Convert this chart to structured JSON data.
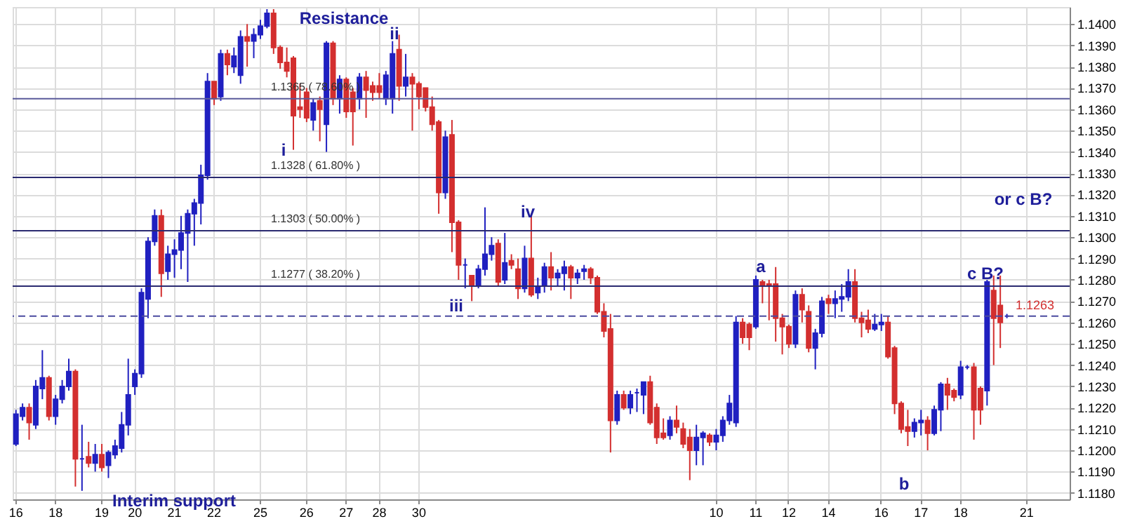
{
  "chart_data": {
    "type": "candlestick",
    "categories": [
      "16",
      null,
      null,
      null,
      null,
      null,
      "18",
      null,
      null,
      null,
      null,
      null,
      null,
      "19",
      null,
      null,
      null,
      null,
      "20",
      null,
      null,
      null,
      null,
      null,
      "21",
      null,
      null,
      null,
      null,
      null,
      "22",
      null,
      null,
      null,
      null,
      null,
      null,
      "25",
      null,
      null,
      null,
      null,
      null,
      null,
      "26",
      null,
      null,
      null,
      null,
      null,
      "27",
      null,
      null,
      null,
      null,
      "28",
      null,
      null,
      null,
      null,
      null,
      "30",
      null,
      null,
      null,
      null,
      null,
      null,
      null,
      null,
      null,
      null,
      null,
      null,
      null,
      null,
      null,
      null,
      null,
      null,
      null,
      null,
      null,
      null,
      null,
      null,
      null,
      null,
      null,
      null,
      null,
      null,
      null,
      null,
      null,
      null,
      null,
      null,
      null,
      null,
      null,
      null,
      null,
      null,
      null,
      null,
      "10",
      null,
      null,
      null,
      null,
      null,
      "11",
      null,
      null,
      null,
      null,
      "12",
      null,
      null,
      null,
      null,
      null,
      "14",
      null,
      null,
      null,
      null,
      null,
      null,
      null,
      "16",
      null,
      null,
      null,
      null,
      null,
      "17",
      null,
      null,
      null,
      null,
      null,
      "18",
      null,
      null,
      null,
      null,
      null,
      null,
      null,
      null,
      null,
      "21",
      null,
      null,
      null,
      null,
      null,
      null
    ],
    "ohlc": [
      [
        1.1203,
        1.1219,
        1.1202,
        1.1217
      ],
      [
        1.1216,
        1.1222,
        1.1214,
        1.122
      ],
      [
        1.122,
        1.1222,
        1.1205,
        1.1213
      ],
      [
        1.1212,
        1.1233,
        1.121,
        1.123
      ],
      [
        1.1229,
        1.1247,
        1.1224,
        1.1234
      ],
      [
        1.1234,
        1.1235,
        1.1214,
        1.1216
      ],
      [
        1.1216,
        1.1226,
        1.1212,
        1.1224
      ],
      [
        1.1224,
        1.1233,
        1.1222,
        1.123
      ],
      [
        1.123,
        1.1243,
        1.1228,
        1.1237
      ],
      [
        1.1237,
        1.1238,
        1.1183,
        1.1196
      ],
      [
        1.1196,
        1.1212,
        1.1181,
        1.1196
      ],
      [
        1.1197,
        1.1204,
        1.1192,
        1.1194
      ],
      [
        1.1194,
        1.1203,
        1.119,
        1.1198
      ],
      [
        1.1198,
        1.1203,
        1.119,
        1.1192
      ],
      [
        1.1193,
        1.12,
        1.1187,
        1.1199
      ],
      [
        1.1198,
        1.1205,
        1.1196,
        1.1202
      ],
      [
        1.1201,
        1.1218,
        1.1199,
        1.1212
      ],
      [
        1.1212,
        1.1243,
        1.1207,
        1.1226
      ],
      [
        1.123,
        1.1238,
        1.1226,
        1.1236
      ],
      [
        1.1236,
        1.1276,
        1.1234,
        1.1274
      ],
      [
        1.1271,
        1.13,
        1.1262,
        1.1298
      ],
      [
        1.1298,
        1.1313,
        1.1296,
        1.131
      ],
      [
        1.131,
        1.1313,
        1.1272,
        1.1283
      ],
      [
        1.1284,
        1.1296,
        1.128,
        1.1292
      ],
      [
        1.1292,
        1.1299,
        1.1281,
        1.1294
      ],
      [
        1.1294,
        1.131,
        1.1285,
        1.1302
      ],
      [
        1.1302,
        1.1313,
        1.1279,
        1.1311
      ],
      [
        1.1311,
        1.1318,
        1.1296,
        1.1316
      ],
      [
        1.1316,
        1.1334,
        1.1306,
        1.1329
      ],
      [
        1.1329,
        1.1377,
        1.1327,
        1.1373
      ],
      [
        1.1373,
        1.1373,
        1.1362,
        1.1365
      ],
      [
        1.1366,
        1.1388,
        1.1364,
        1.1386
      ],
      [
        1.1386,
        1.1388,
        1.1376,
        1.1381
      ],
      [
        1.138,
        1.1389,
        1.1377,
        1.1385
      ],
      [
        1.1376,
        1.1397,
        1.1372,
        1.1394
      ],
      [
        1.1394,
        1.14,
        1.138,
        1.1392
      ],
      [
        1.1392,
        1.1398,
        1.1384,
        1.1395
      ],
      [
        1.1395,
        1.1402,
        1.1393,
        1.1399
      ],
      [
        1.1399,
        1.1407,
        1.1398,
        1.1405
      ],
      [
        1.1405,
        1.1407,
        1.1386,
        1.1389
      ],
      [
        1.1389,
        1.139,
        1.1379,
        1.1382
      ],
      [
        1.1382,
        1.1389,
        1.1375,
        1.1378
      ],
      [
        1.1384,
        1.1385,
        1.1341,
        1.1357
      ],
      [
        1.1361,
        1.1372,
        1.1356,
        1.136
      ],
      [
        1.1368,
        1.137,
        1.1354,
        1.1356
      ],
      [
        1.1355,
        1.1365,
        1.135,
        1.1363
      ],
      [
        1.1364,
        1.1366,
        1.1345,
        1.136
      ],
      [
        1.1353,
        1.1392,
        1.134,
        1.1391
      ],
      [
        1.1391,
        1.1392,
        1.1362,
        1.1365
      ],
      [
        1.1365,
        1.1376,
        1.1358,
        1.1374
      ],
      [
        1.1374,
        1.1375,
        1.1356,
        1.1359
      ],
      [
        1.1368,
        1.137,
        1.1343,
        1.1359
      ],
      [
        1.1365,
        1.1377,
        1.136,
        1.1375
      ],
      [
        1.1375,
        1.1378,
        1.1356,
        1.1369
      ],
      [
        1.1371,
        1.1373,
        1.1364,
        1.1368
      ],
      [
        1.1371,
        1.1377,
        1.1365,
        1.1368
      ],
      [
        1.1365,
        1.1378,
        1.1362,
        1.1376
      ],
      [
        1.1365,
        1.1392,
        1.1358,
        1.1386
      ],
      [
        1.1388,
        1.1395,
        1.1364,
        1.1371
      ],
      [
        1.1371,
        1.1386,
        1.1366,
        1.1375
      ],
      [
        1.1375,
        1.1377,
        1.135,
        1.1372
      ],
      [
        1.1372,
        1.1373,
        1.136,
        1.1366
      ],
      [
        1.137,
        1.137,
        1.1359,
        1.1361
      ],
      [
        1.1361,
        1.1366,
        1.135,
        1.1353
      ],
      [
        1.1354,
        1.1355,
        1.1311,
        1.1321
      ],
      [
        1.1321,
        1.135,
        1.1318,
        1.1347
      ],
      [
        1.1348,
        1.1355,
        1.1293,
        1.1307
      ],
      [
        1.1307,
        1.1308,
        1.128,
        1.1287
      ],
      [
        1.1287,
        1.129,
        1.1276,
        1.1287
      ],
      [
        1.1282,
        1.1282,
        1.127,
        1.1277
      ],
      [
        1.1277,
        1.1287,
        1.1276,
        1.1285
      ],
      [
        1.1285,
        1.1314,
        1.1282,
        1.1292
      ],
      [
        1.1292,
        1.13,
        1.1289,
        1.1296
      ],
      [
        1.1297,
        1.1299,
        1.1277,
        1.1279
      ],
      [
        1.128,
        1.1302,
        1.1278,
        1.1288
      ],
      [
        1.1289,
        1.1292,
        1.1285,
        1.1287
      ],
      [
        1.1285,
        1.129,
        1.1271,
        1.1276
      ],
      [
        1.1276,
        1.1296,
        1.1274,
        1.129
      ],
      [
        1.129,
        1.1311,
        1.1272,
        1.1273
      ],
      [
        1.1274,
        1.1281,
        1.1271,
        1.1277
      ],
      [
        1.1277,
        1.1288,
        1.1274,
        1.1286
      ],
      [
        1.1286,
        1.1293,
        1.1275,
        1.1281
      ],
      [
        1.1281,
        1.1285,
        1.1277,
        1.1283
      ],
      [
        1.1283,
        1.1289,
        1.1275,
        1.1286
      ],
      [
        1.1286,
        1.1287,
        1.1271,
        1.1281
      ],
      [
        1.1281,
        1.1285,
        1.1278,
        1.1283
      ],
      [
        1.1284,
        1.1287,
        1.128,
        1.1285
      ],
      [
        1.1285,
        1.1286,
        1.1278,
        1.1281
      ],
      [
        1.1281,
        1.1282,
        1.1264,
        1.1265
      ],
      [
        1.1265,
        1.1269,
        1.1253,
        1.1256
      ],
      [
        1.1257,
        1.1264,
        1.1199,
        1.1214
      ],
      [
        1.1214,
        1.1228,
        1.1212,
        1.1226
      ],
      [
        1.1226,
        1.1228,
        1.1219,
        1.122
      ],
      [
        1.122,
        1.1228,
        1.1217,
        1.1226
      ],
      [
        1.1227,
        1.1229,
        1.1218,
        1.1227
      ],
      [
        1.1226,
        1.1232,
        1.1217,
        1.1232
      ],
      [
        1.1232,
        1.1235,
        1.1212,
        1.1213
      ],
      [
        1.122,
        1.1222,
        1.1203,
        1.1206
      ],
      [
        1.1208,
        1.1215,
        1.1205,
        1.1206
      ],
      [
        1.1207,
        1.1216,
        1.1205,
        1.1214
      ],
      [
        1.1214,
        1.1221,
        1.1208,
        1.1211
      ],
      [
        1.121,
        1.1213,
        1.1201,
        1.1203
      ],
      [
        1.1206,
        1.121,
        1.1186,
        1.12
      ],
      [
        1.12,
        1.1212,
        1.1193,
        1.1206
      ],
      [
        1.1206,
        1.1209,
        1.1193,
        1.1208
      ],
      [
        1.1207,
        1.1208,
        1.1202,
        1.1204
      ],
      [
        1.1204,
        1.121,
        1.12,
        1.1207
      ],
      [
        1.1207,
        1.1216,
        1.1204,
        1.1214
      ],
      [
        1.1214,
        1.1226,
        1.1212,
        1.1222
      ],
      [
        1.1213,
        1.1263,
        1.1211,
        1.126
      ],
      [
        1.126,
        1.1262,
        1.125,
        1.1253
      ],
      [
        1.1259,
        1.126,
        1.1247,
        1.1253
      ],
      [
        1.1258,
        1.1282,
        1.1257,
        1.128
      ],
      [
        1.1279,
        1.128,
        1.1269,
        1.1277
      ],
      [
        1.1278,
        1.128,
        1.1261,
        1.1277
      ],
      [
        1.1278,
        1.1286,
        1.1251,
        1.1262
      ],
      [
        1.1262,
        1.1264,
        1.1245,
        1.1258
      ],
      [
        1.1258,
        1.1259,
        1.1248,
        1.125
      ],
      [
        1.125,
        1.1275,
        1.1248,
        1.1273
      ],
      [
        1.1273,
        1.1276,
        1.126,
        1.1266
      ],
      [
        1.1265,
        1.1268,
        1.1246,
        1.1248
      ],
      [
        1.1248,
        1.1257,
        1.1238,
        1.1255
      ],
      [
        1.1255,
        1.1272,
        1.1253,
        1.127
      ],
      [
        1.1271,
        1.1273,
        1.1264,
        1.1269
      ],
      [
        1.1269,
        1.1275,
        1.1262,
        1.1271
      ],
      [
        1.1271,
        1.1278,
        1.1265,
        1.1272
      ],
      [
        1.1272,
        1.1285,
        1.127,
        1.1279
      ],
      [
        1.1279,
        1.1285,
        1.126,
        1.1262
      ],
      [
        1.1262,
        1.1265,
        1.1253,
        1.126
      ],
      [
        1.1261,
        1.1266,
        1.1255,
        1.1257
      ],
      [
        1.1257,
        1.1264,
        1.1256,
        1.1259
      ],
      [
        1.1259,
        1.1264,
        1.1256,
        1.126
      ],
      [
        1.126,
        1.1263,
        1.1243,
        1.1244
      ],
      [
        1.1248,
        1.1249,
        1.1217,
        1.1222
      ],
      [
        1.1222,
        1.1223,
        1.1208,
        1.121
      ],
      [
        1.1211,
        1.1219,
        1.1202,
        1.1209
      ],
      [
        1.1209,
        1.1215,
        1.1206,
        1.1213
      ],
      [
        1.1213,
        1.1219,
        1.1207,
        1.1214
      ],
      [
        1.1214,
        1.1216,
        1.12,
        1.1208
      ],
      [
        1.1208,
        1.1221,
        1.1207,
        1.1219
      ],
      [
        1.1219,
        1.1232,
        1.1209,
        1.1231
      ],
      [
        1.1231,
        1.1234,
        1.1219,
        1.1226
      ],
      [
        1.1228,
        1.1229,
        1.1223,
        1.1225
      ],
      [
        1.1226,
        1.1242,
        1.1224,
        1.1239
      ],
      [
        1.1239,
        1.124,
        1.1238,
        1.1239
      ],
      [
        1.1239,
        1.1241,
        1.1205,
        1.1219
      ],
      [
        1.1229,
        1.123,
        1.1212,
        1.1219
      ],
      [
        1.1228,
        1.128,
        1.1221,
        1.1279
      ],
      [
        1.1275,
        1.1282,
        1.124,
        1.1262
      ],
      [
        1.1268,
        1.1282,
        1.1248,
        1.126
      ],
      [
        1.1263,
        1.1264,
        1.1262,
        1.1263
      ],
      null,
      null,
      null,
      null,
      null,
      null,
      null,
      null,
      null
    ],
    "colors": [
      "#2020c0",
      "#2020c0",
      "#d32f2f",
      "#2020c0",
      "#2020c0",
      "#d32f2f",
      "#2020c0",
      "#2020c0",
      "#2020c0",
      "#d32f2f",
      "#2020c0",
      "#d32f2f",
      "#2020c0",
      "#d32f2f",
      "#2020c0",
      "#2020c0",
      "#2020c0",
      "#2020c0",
      "#2020c0",
      "#2020c0",
      "#2020c0",
      "#2020c0",
      "#d32f2f",
      "#2020c0",
      "#2020c0",
      "#2020c0",
      "#2020c0",
      "#2020c0",
      "#2020c0",
      "#2020c0",
      "#d32f2f",
      "#2020c0",
      "#d32f2f",
      "#2020c0",
      "#2020c0",
      "#d32f2f",
      "#2020c0",
      "#2020c0",
      "#2020c0",
      "#d32f2f",
      "#d32f2f",
      "#d32f2f",
      "#d32f2f",
      "#d32f2f",
      "#d32f2f",
      "#2020c0",
      "#d32f2f",
      "#2020c0",
      "#d32f2f",
      "#2020c0",
      "#d32f2f",
      "#d32f2f",
      "#2020c0",
      "#d32f2f",
      "#d32f2f",
      "#d32f2f",
      "#2020c0",
      "#2020c0",
      "#d32f2f",
      "#2020c0",
      "#d32f2f",
      "#d32f2f",
      "#d32f2f",
      "#d32f2f",
      "#d32f2f",
      "#2020c0",
      "#d32f2f",
      "#d32f2f",
      "#2020c0",
      "#d32f2f",
      "#2020c0",
      "#2020c0",
      "#2020c0",
      "#d32f2f",
      "#2020c0",
      "#d32f2f",
      "#d32f2f",
      "#2020c0",
      "#d32f2f",
      "#2020c0",
      "#2020c0",
      "#d32f2f",
      "#2020c0",
      "#2020c0",
      "#d32f2f",
      "#2020c0",
      "#2020c0",
      "#d32f2f",
      "#d32f2f",
      "#d32f2f",
      "#d32f2f",
      "#2020c0",
      "#d32f2f",
      "#2020c0",
      "#2020c0",
      "#2020c0",
      "#d32f2f",
      "#d32f2f",
      "#d32f2f",
      "#2020c0",
      "#d32f2f",
      "#d32f2f",
      "#d32f2f",
      "#2020c0",
      "#2020c0",
      "#d32f2f",
      "#2020c0",
      "#2020c0",
      "#2020c0",
      "#2020c0",
      "#d32f2f",
      "#d32f2f",
      "#2020c0",
      "#d32f2f",
      "#d32f2f",
      "#d32f2f",
      "#d32f2f",
      "#d32f2f",
      "#2020c0",
      "#d32f2f",
      "#d32f2f",
      "#2020c0",
      "#2020c0",
      "#d32f2f",
      "#2020c0",
      "#2020c0",
      "#2020c0",
      "#d32f2f",
      "#d32f2f",
      "#d32f2f",
      "#2020c0",
      "#2020c0",
      "#d32f2f",
      "#d32f2f",
      "#d32f2f",
      "#d32f2f",
      "#2020c0",
      "#2020c0",
      "#d32f2f",
      "#2020c0",
      "#2020c0",
      "#d32f2f",
      "#d32f2f",
      "#2020c0",
      "#2020c0",
      "#d32f2f",
      "#d32f2f",
      "#2020c0",
      "#d32f2f",
      "#d32f2f",
      "#2020c0",
      null,
      null,
      null,
      null,
      null,
      null,
      null,
      null,
      null
    ],
    "ylim": [
      1.1177,
      1.1408
    ],
    "yticks": [
      {
        "value": 1.118,
        "label": "1.1180"
      },
      {
        "value": 1.119,
        "label": "1.1190"
      },
      {
        "value": 1.12,
        "label": "1.1200"
      },
      {
        "value": 1.121,
        "label": "1.1210"
      },
      {
        "value": 1.122,
        "label": "1.1220"
      },
      {
        "value": 1.123,
        "label": "1.1230"
      },
      {
        "value": 1.124,
        "label": "1.1240"
      },
      {
        "value": 1.125,
        "label": "1.1250"
      },
      {
        "value": 1.126,
        "label": "1.1260"
      },
      {
        "value": 1.127,
        "label": "1.1270"
      },
      {
        "value": 1.128,
        "label": "1.1280"
      },
      {
        "value": 1.129,
        "label": "1.1290"
      },
      {
        "value": 1.13,
        "label": "1.1300"
      },
      {
        "value": 1.131,
        "label": "1.1310"
      },
      {
        "value": 1.132,
        "label": "1.1320"
      },
      {
        "value": 1.133,
        "label": "1.1330"
      },
      {
        "value": 1.134,
        "label": "1.1340"
      },
      {
        "value": 1.135,
        "label": "1.1350"
      },
      {
        "value": 1.136,
        "label": "1.1360"
      },
      {
        "value": 1.137,
        "label": "1.1370"
      },
      {
        "value": 1.138,
        "label": "1.1380"
      },
      {
        "value": 1.139,
        "label": "1.1390"
      },
      {
        "value": 1.14,
        "label": "1.1400"
      }
    ],
    "grid": true,
    "ref_lines": [
      {
        "axis": "y",
        "value": 1.1365,
        "label": "1.1365 ( 78.60% )",
        "color": "#5a5a9a"
      },
      {
        "axis": "y",
        "value": 1.1328,
        "label": "1.1328 ( 61.80% )",
        "color": "#2a2a70"
      },
      {
        "axis": "y",
        "value": 1.1303,
        "label": "1.1303 ( 50.00% )",
        "color": "#2a2a70"
      },
      {
        "axis": "y",
        "value": 1.1277,
        "label": "1.1277 ( 38.20% )",
        "color": "#2a2a70"
      },
      {
        "axis": "y",
        "value": 1.1263,
        "label": "1.1263",
        "color": "#4a4aa0",
        "line_style": "dashed"
      }
    ],
    "annotations": [
      "Resistance",
      "Interim support",
      "i",
      "ii",
      "iii",
      "iv",
      "a",
      "b",
      "c B?",
      "or c B?"
    ]
  }
}
